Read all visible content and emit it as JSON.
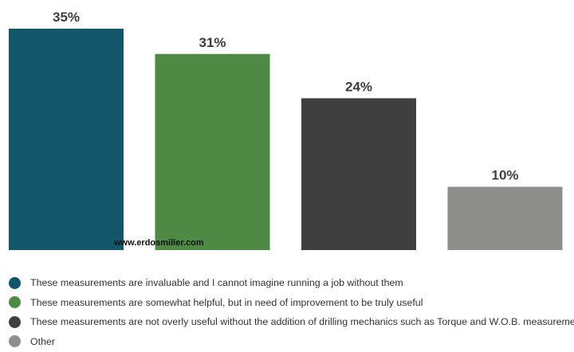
{
  "chart_data": {
    "type": "bar",
    "categories": [
      "These measurements are invaluable and I cannot imagine running a job without them",
      "These measurements are somewhat helpful, but in need of improvement to be truly useful",
      "These measurements are not overly useful without the addition of drilling mechanics such as Torque and W.O.B. measurements",
      "Other"
    ],
    "values": [
      35,
      31,
      24,
      10
    ],
    "value_labels": [
      "35%",
      "31%",
      "24%",
      "10%"
    ],
    "colors": [
      "#12566a",
      "#4f8a45",
      "#3f3f3f",
      "#8e8e8d"
    ],
    "title": "",
    "xlabel": "",
    "ylabel": "",
    "ylim": [
      0,
      35
    ],
    "grid": false,
    "legend_placement": "bottom"
  },
  "watermark": "www.erdosmiller.com"
}
